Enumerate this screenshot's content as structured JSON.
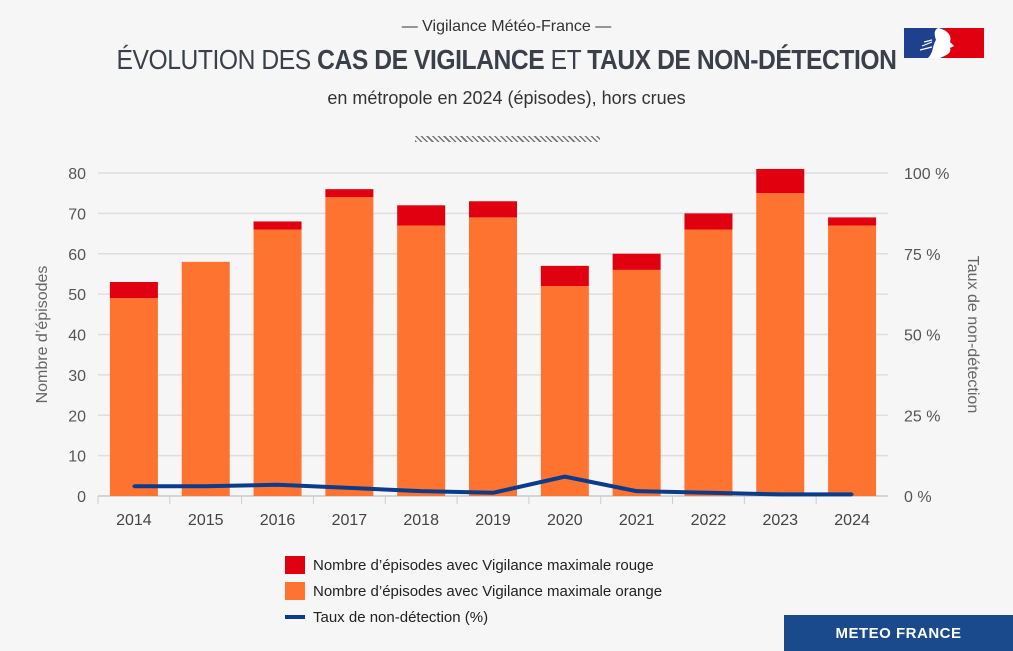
{
  "header": {
    "kicker": "— Vigilance Météo-France —",
    "title_parts": [
      "ÉVOLUTION DES ",
      "CAS DE VIGILANCE",
      " ET ",
      "TAUX DE NON-DÉTECTION"
    ],
    "subtitle": "en métropole en 2024 (épisodes), hors crues"
  },
  "brand": {
    "label": "METEO FRANCE",
    "color": "#1a4a8c"
  },
  "chart_data": {
    "type": "bar",
    "categories": [
      "2014",
      "2015",
      "2016",
      "2017",
      "2018",
      "2019",
      "2020",
      "2021",
      "2022",
      "2023",
      "2024"
    ],
    "series": [
      {
        "name": "Nombre d’épisodes avec Vigilance maximale orange",
        "type": "bar",
        "stack": "a",
        "axis": "left",
        "color": "#ff7330",
        "values": [
          49,
          58,
          66,
          74,
          67,
          69,
          52,
          56,
          66,
          75,
          67
        ]
      },
      {
        "name": "Nombre d’épisodes avec Vigilance maximale rouge",
        "type": "bar",
        "stack": "a",
        "axis": "left",
        "color": "#e1000f",
        "values": [
          4,
          0,
          2,
          2,
          5,
          4,
          5,
          4,
          4,
          6,
          2
        ]
      },
      {
        "name": "Taux de non-détection (%)",
        "type": "line",
        "axis": "right",
        "color": "#0b3c8c",
        "values": [
          3,
          3,
          3.5,
          2.5,
          1.5,
          1,
          6,
          1.5,
          1,
          0.5,
          0.5
        ]
      }
    ],
    "ylabel": "Nombre d’épisodes",
    "y2label": "Taux de non-détection",
    "ylim": [
      0,
      80
    ],
    "yticks": [
      "0",
      "10",
      "20",
      "30",
      "40",
      "50",
      "60",
      "70",
      "80"
    ],
    "y2lim": [
      0,
      100
    ],
    "y2ticks": [
      "0 %",
      "25 %",
      "50 %",
      "75 %",
      "100 %"
    ],
    "grid": true,
    "legend": "bottom"
  }
}
